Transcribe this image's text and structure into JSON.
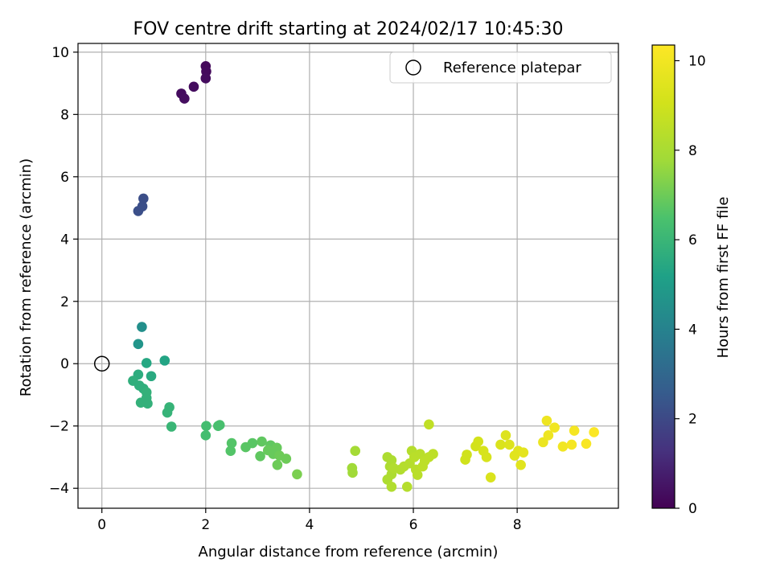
{
  "chart_data": {
    "type": "scatter",
    "title": "FOV centre drift starting at 2024/02/17 10:45:30",
    "xlabel": "Angular distance from reference (arcmin)",
    "ylabel": "Rotation from reference (arcmin)",
    "xlim": [
      -0.46,
      9.95
    ],
    "ylim": [
      -4.64,
      10.28
    ],
    "x_ticks": [
      0,
      2,
      4,
      6,
      8
    ],
    "y_ticks": [
      -4,
      -2,
      0,
      2,
      4,
      6,
      8,
      10
    ],
    "grid": true,
    "legend": {
      "placement": "top-right",
      "entries": [
        "Reference platepar"
      ]
    },
    "reference_point": {
      "x": 0,
      "y": 0
    },
    "colorbar": {
      "label": "Hours from first FF file",
      "colormap": "viridis",
      "range": [
        0,
        10.35
      ],
      "ticks": [
        0,
        2,
        4,
        6,
        8,
        10
      ]
    },
    "series": [
      {
        "points": [
          [
            1.53,
            8.67,
            0.3
          ],
          [
            1.59,
            8.51,
            0.35
          ],
          [
            1.77,
            8.89,
            0.3
          ],
          [
            2.0,
            9.55,
            0.2
          ],
          [
            2.01,
            9.38,
            0.25
          ],
          [
            2.0,
            9.16,
            0.3
          ],
          [
            0.7,
            4.9,
            2.2
          ],
          [
            0.78,
            5.05,
            2.2
          ],
          [
            0.8,
            5.3,
            2.15
          ],
          [
            0.77,
            1.18,
            4.5
          ],
          [
            0.7,
            0.63,
            4.7
          ],
          [
            1.21,
            0.1,
            5.3
          ],
          [
            0.86,
            0.02,
            5.4
          ],
          [
            0.95,
            -0.4,
            5.5
          ],
          [
            0.7,
            -0.35,
            5.6
          ],
          [
            0.6,
            -0.55,
            5.7
          ],
          [
            0.72,
            -0.7,
            5.7
          ],
          [
            0.8,
            -0.8,
            5.7
          ],
          [
            0.86,
            -0.92,
            5.8
          ],
          [
            0.86,
            -1.1,
            5.8
          ],
          [
            0.75,
            -1.25,
            5.8
          ],
          [
            0.88,
            -1.28,
            5.8
          ],
          [
            1.3,
            -1.4,
            5.9
          ],
          [
            1.26,
            -1.57,
            5.9
          ],
          [
            1.34,
            -2.02,
            6.0
          ],
          [
            2.01,
            -2.0,
            6.3
          ],
          [
            2.0,
            -2.3,
            6.3
          ],
          [
            2.27,
            -1.97,
            6.4
          ],
          [
            2.24,
            -2.0,
            6.4
          ],
          [
            2.5,
            -2.55,
            6.6
          ],
          [
            2.48,
            -2.8,
            6.6
          ],
          [
            2.77,
            -2.68,
            6.7
          ],
          [
            2.9,
            -2.55,
            6.7
          ],
          [
            3.08,
            -2.5,
            6.8
          ],
          [
            3.05,
            -2.97,
            6.8
          ],
          [
            3.25,
            -2.62,
            6.8
          ],
          [
            3.2,
            -2.78,
            6.9
          ],
          [
            3.3,
            -2.9,
            6.9
          ],
          [
            3.37,
            -2.7,
            6.9
          ],
          [
            3.42,
            -2.95,
            7.0
          ],
          [
            3.38,
            -3.25,
            7.0
          ],
          [
            3.55,
            -3.05,
            7.0
          ],
          [
            3.76,
            -3.55,
            7.2
          ],
          [
            4.82,
            -3.35,
            7.8
          ],
          [
            4.83,
            -3.5,
            7.8
          ],
          [
            4.88,
            -2.8,
            7.9
          ],
          [
            5.5,
            -3.0,
            8.1
          ],
          [
            5.55,
            -3.3,
            8.1
          ],
          [
            5.58,
            -3.1,
            8.1
          ],
          [
            5.5,
            -3.72,
            8.1
          ],
          [
            5.58,
            -3.55,
            8.1
          ],
          [
            5.58,
            -3.95,
            8.2
          ],
          [
            5.62,
            -3.35,
            8.2
          ],
          [
            5.75,
            -3.4,
            8.2
          ],
          [
            5.82,
            -3.3,
            8.3
          ],
          [
            5.88,
            -3.95,
            8.3
          ],
          [
            5.93,
            -3.2,
            8.3
          ],
          [
            5.97,
            -2.8,
            8.3
          ],
          [
            6.02,
            -3.0,
            8.4
          ],
          [
            6.05,
            -3.4,
            8.4
          ],
          [
            6.08,
            -3.57,
            8.4
          ],
          [
            6.13,
            -2.9,
            8.4
          ],
          [
            6.18,
            -3.3,
            8.5
          ],
          [
            6.22,
            -3.12,
            8.5
          ],
          [
            6.3,
            -3.0,
            8.5
          ],
          [
            6.38,
            -2.9,
            8.5
          ],
          [
            6.3,
            -1.95,
            8.6
          ],
          [
            7.0,
            -3.08,
            9.0
          ],
          [
            7.03,
            -2.92,
            9.0
          ],
          [
            7.2,
            -2.65,
            9.1
          ],
          [
            7.25,
            -2.5,
            9.1
          ],
          [
            7.35,
            -2.8,
            9.2
          ],
          [
            7.41,
            -3.0,
            9.2
          ],
          [
            7.49,
            -3.65,
            9.3
          ],
          [
            7.68,
            -2.6,
            9.3
          ],
          [
            7.78,
            -2.3,
            9.4
          ],
          [
            7.85,
            -2.6,
            9.4
          ],
          [
            7.95,
            -2.95,
            9.5
          ],
          [
            8.02,
            -2.8,
            9.5
          ],
          [
            8.07,
            -3.25,
            9.5
          ],
          [
            8.12,
            -2.85,
            9.6
          ],
          [
            8.5,
            -2.52,
            9.8
          ],
          [
            8.57,
            -1.83,
            9.9
          ],
          [
            8.6,
            -2.3,
            9.9
          ],
          [
            8.72,
            -2.05,
            10.0
          ],
          [
            8.88,
            -2.66,
            10.0
          ],
          [
            9.05,
            -2.6,
            10.1
          ],
          [
            9.1,
            -2.15,
            10.1
          ],
          [
            9.33,
            -2.57,
            10.2
          ],
          [
            9.48,
            -2.2,
            10.3
          ]
        ]
      }
    ]
  }
}
